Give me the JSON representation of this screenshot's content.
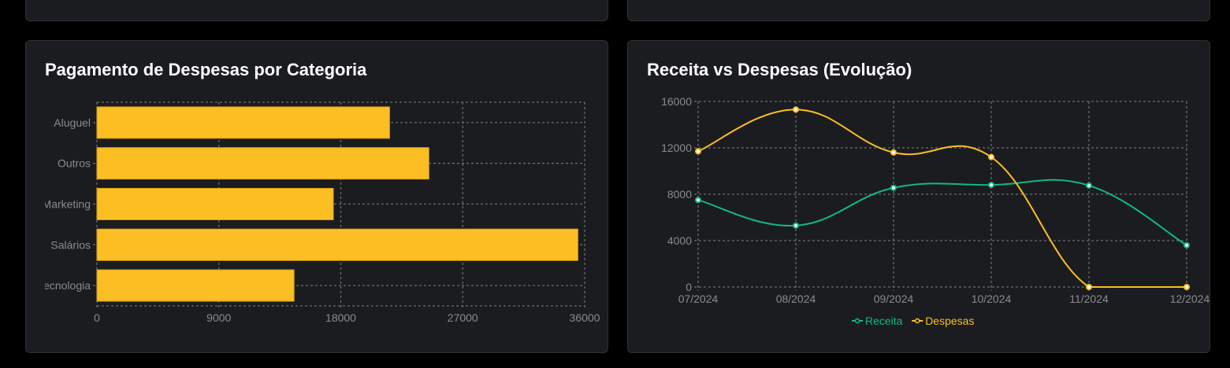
{
  "chart_data": [
    {
      "type": "bar",
      "orientation": "horizontal",
      "title": "Pagamento de Despesas por Categoria",
      "categories": [
        "Aluguel",
        "Outros",
        "Marketing",
        "Salários",
        "Tecnologia"
      ],
      "values": [
        21600,
        24500,
        17450,
        35500,
        14550
      ],
      "xlim": [
        0,
        36000
      ],
      "xticks": [
        "0",
        "9000",
        "18000",
        "27000",
        "36000"
      ],
      "grid": true,
      "color": "#fbbf24"
    },
    {
      "type": "line",
      "title": "Receita vs Despesas (Evolução)",
      "categories": [
        "07/2024",
        "08/2024",
        "09/2024",
        "10/2024",
        "11/2024",
        "12/2024"
      ],
      "series": [
        {
          "name": "Receita",
          "color": "#10b981",
          "values": [
            7500,
            5300,
            8550,
            8800,
            8750,
            3600
          ]
        },
        {
          "name": "Despesas",
          "color": "#fbbf24",
          "values": [
            11700,
            15300,
            11600,
            11200,
            0,
            0
          ]
        }
      ],
      "ylim": [
        0,
        16000
      ],
      "yticks": [
        "0",
        "4000",
        "8000",
        "12000",
        "16000"
      ],
      "grid": true,
      "legend": "bottom-center"
    }
  ]
}
